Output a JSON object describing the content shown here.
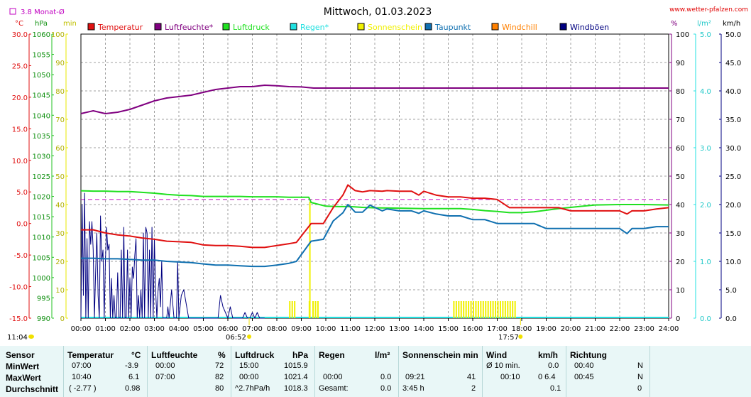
{
  "chart_data": {
    "type": "line",
    "title": "Mittwoch, 01.03.2023",
    "source": "www.wetter-pfalzen.com",
    "average_label": "3.8 Monat-Ø",
    "average_value": 3.8,
    "units": {
      "temp": "°C",
      "pressure": "hPa",
      "sun": "min",
      "humidity": "%",
      "rain": "l/m²",
      "wind": "km/h"
    },
    "axes": {
      "temp": {
        "min": -15,
        "max": 30,
        "ticks": [
          "30.0",
          "25.0",
          "20.0",
          "15.0",
          "10.0",
          "5.0",
          "0.0",
          "-5.0",
          "-10.0",
          "-15.0"
        ]
      },
      "pressure": {
        "min": 990,
        "max": 1060,
        "ticks": [
          "1060",
          "1055",
          "1050",
          "1045",
          "1040",
          "1035",
          "1030",
          "1025",
          "1020",
          "1015",
          "1010",
          "1005",
          "1000",
          "995",
          "990"
        ]
      },
      "sun": {
        "min": 0,
        "max": 100,
        "ticks": [
          "100",
          "90",
          "80",
          "70",
          "60",
          "50",
          "40",
          "30",
          "20",
          "10",
          "0"
        ]
      },
      "humidity": {
        "min": 0,
        "max": 100,
        "ticks": [
          "100",
          "90",
          "80",
          "70",
          "60",
          "50",
          "40",
          "30",
          "20",
          "10",
          "0"
        ]
      },
      "rain": {
        "min": 0,
        "max": 5,
        "ticks": [
          "5.0",
          "4.0",
          "3.0",
          "2.0",
          "1.0",
          "0.0"
        ]
      },
      "wind": {
        "min": 0,
        "max": 50,
        "ticks": [
          "50.0",
          "45.0",
          "40.0",
          "35.0",
          "30.0",
          "25.0",
          "20.0",
          "15.0",
          "10.0",
          "5.0",
          "0.0"
        ]
      }
    },
    "x_ticks": [
      "00:00",
      "01:00",
      "02:00",
      "03:00",
      "04:00",
      "05:00",
      "06:00",
      "07:00",
      "08:00",
      "09:00",
      "10:00",
      "11:00",
      "12:00",
      "13:00",
      "14:00",
      "15:00",
      "16:00",
      "17:00",
      "18:00",
      "19:00",
      "20:00",
      "21:00",
      "22:00",
      "23:00",
      "24:00"
    ],
    "sun_events": {
      "sunrise": "06:52",
      "sunset": "17:57",
      "sunrise_h": 6.87,
      "sunset_h": 17.95
    },
    "daylength": "11:04",
    "legend": [
      "Temperatur",
      "Luftfeuchte*",
      "Luftdruck",
      "Regen*",
      "Sonnenschein",
      "Taupunkt",
      "Windchill",
      "Windböen"
    ],
    "colors": {
      "Temperatur": "#e01010",
      "Luftfeuchte*": "#800080",
      "Luftdruck": "#20e020",
      "Regen*": "#20e0e0",
      "Sonnenschein": "#f0f000",
      "Taupunkt": "#1070b0",
      "Windchill": "#ff8000",
      "Windböen": "#000080"
    },
    "series": [
      {
        "name": "Temperatur",
        "axis": "temp",
        "x": [
          0,
          0.5,
          1,
          1.5,
          2,
          2.5,
          3,
          3.5,
          4,
          4.5,
          5,
          5.5,
          6,
          6.5,
          7,
          7.5,
          8,
          8.5,
          8.8,
          9.4,
          9.9,
          10.3,
          10.7,
          10.9,
          11.2,
          11.5,
          11.8,
          12.3,
          12.5,
          13,
          13.5,
          13.8,
          14,
          14.5,
          15,
          15.5,
          16,
          16.5,
          17,
          17.5,
          18,
          18.5,
          19,
          19.5,
          20,
          20.5,
          21,
          21.5,
          22,
          22.3,
          22.5,
          23,
          23.5,
          24
        ],
        "values": [
          -1,
          -1,
          -1.5,
          -1.8,
          -2,
          -2.3,
          -2.5,
          -2.8,
          -2.9,
          -3,
          -3.4,
          -3.5,
          -3.5,
          -3.6,
          -3.8,
          -3.8,
          -3.5,
          -3.2,
          -3,
          0,
          0,
          2.5,
          4.5,
          6.1,
          5.2,
          5,
          5.2,
          5.1,
          5.2,
          5.1,
          5.1,
          4.5,
          5.1,
          4.5,
          4.2,
          4.2,
          4,
          4,
          3.8,
          2.5,
          2.5,
          2.5,
          2.5,
          2.5,
          2,
          2,
          2,
          2,
          2,
          1.5,
          2,
          2,
          2.3,
          2.5
        ]
      },
      {
        "name": "Luftfeuchte*",
        "axis": "humidity",
        "x": [
          0,
          0.5,
          1,
          1.5,
          2,
          2.5,
          3,
          3.5,
          4,
          4.5,
          5,
          5.5,
          6,
          6.5,
          7,
          7.5,
          8,
          8.5,
          9,
          9.5,
          10,
          10.5,
          11,
          11.5,
          12,
          13,
          14,
          15,
          16,
          17,
          18,
          19,
          20,
          21,
          22,
          23,
          24
        ],
        "values": [
          72,
          73,
          72,
          72.5,
          73.5,
          75,
          76.5,
          77.5,
          78,
          78.5,
          79.5,
          80.5,
          81,
          81.5,
          81.5,
          82,
          81.8,
          81.5,
          81.4,
          81,
          81,
          81,
          81,
          81,
          81,
          81,
          81,
          81,
          81,
          81,
          81,
          81,
          81,
          81,
          81,
          81,
          81
        ]
      },
      {
        "name": "Luftdruck",
        "axis": "pressure",
        "x": [
          0,
          0.5,
          1,
          1.5,
          2,
          2.5,
          3,
          3.5,
          4,
          4.5,
          5,
          5.5,
          6,
          6.5,
          7,
          7.5,
          8,
          8.5,
          9,
          9.3,
          9.4,
          10,
          10.5,
          11,
          11.5,
          12,
          13,
          14,
          15,
          15.5,
          16,
          16.5,
          17,
          17.5,
          18,
          18.5,
          19,
          19.5,
          20,
          20.5,
          21,
          22,
          23,
          24
        ],
        "values": [
          1021.4,
          1021.3,
          1021.3,
          1021.2,
          1021.2,
          1021,
          1020.8,
          1020.5,
          1020.3,
          1020.2,
          1020,
          1020,
          1020,
          1020,
          1019.9,
          1019.9,
          1019.9,
          1019.8,
          1019.8,
          1019.8,
          1018.5,
          1017.6,
          1017.5,
          1017.5,
          1017.3,
          1017.2,
          1017.1,
          1017,
          1017,
          1017,
          1016.8,
          1016.5,
          1016.3,
          1016,
          1016,
          1016.2,
          1016.6,
          1017,
          1017.3,
          1017.6,
          1017.9,
          1018,
          1018,
          1017.9
        ]
      },
      {
        "name": "Taupunkt",
        "axis": "temp",
        "x": [
          0,
          0.5,
          1,
          1.5,
          2,
          2.5,
          3,
          3.5,
          4,
          4.5,
          5,
          5.5,
          6,
          6.5,
          7,
          7.5,
          8,
          8.5,
          8.8,
          9.4,
          9.9,
          10.3,
          10.7,
          10.9,
          11.2,
          11.5,
          11.8,
          12.3,
          12.5,
          13,
          13.5,
          13.8,
          14,
          14.5,
          15,
          15.5,
          16,
          16.5,
          17,
          17.5,
          18,
          18.5,
          19,
          19.5,
          20,
          20.5,
          21,
          21.5,
          22,
          22.3,
          22.5,
          23,
          23.5,
          24
        ],
        "values": [
          -5.5,
          -5.5,
          -5.6,
          -5.6,
          -5.7,
          -5.8,
          -5.8,
          -6,
          -6.1,
          -6.2,
          -6.4,
          -6.6,
          -6.6,
          -6.7,
          -6.8,
          -6.8,
          -6.6,
          -6.3,
          -6,
          -2.8,
          -2.5,
          0.4,
          1.7,
          3,
          1.8,
          1.8,
          2.9,
          2,
          2.3,
          2,
          2,
          1.6,
          2,
          1.5,
          1.2,
          1.2,
          0.6,
          0.6,
          0,
          0,
          0,
          0,
          -0.8,
          -0.8,
          -0.8,
          -0.8,
          -0.8,
          -0.8,
          -0.8,
          -1.6,
          -0.8,
          -0.8,
          -0.5,
          -0.5
        ]
      },
      {
        "name": "Windböen",
        "axis": "wind",
        "x": [
          0,
          0.05,
          0.1,
          0.15,
          0.2,
          0.25,
          0.3,
          0.35,
          0.4,
          0.45,
          0.5,
          0.55,
          0.6,
          0.65,
          0.7,
          0.75,
          0.8,
          0.85,
          0.9,
          0.95,
          1.0,
          1.05,
          1.1,
          1.15,
          1.2,
          1.25,
          1.3,
          1.35,
          1.4,
          1.45,
          1.5,
          1.55,
          1.6,
          1.65,
          1.7,
          1.75,
          1.8,
          1.85,
          1.9,
          1.95,
          2.0,
          2.05,
          2.1,
          2.15,
          2.2,
          2.25,
          2.3,
          2.35,
          2.4,
          2.45,
          2.5,
          2.55,
          2.6,
          2.65,
          2.7,
          2.75,
          2.8,
          2.85,
          2.9,
          2.95,
          3.0,
          3.05,
          3.1,
          3.15,
          3.2,
          3.25,
          3.3,
          3.35,
          3.4,
          3.5,
          3.55,
          3.6,
          3.7,
          3.8,
          3.9,
          3.95,
          4.0,
          4.1,
          4.2,
          4.4,
          5.5,
          5.6,
          5.7,
          5.8,
          5.9,
          6.0,
          6.1,
          6.2,
          6.3,
          6.4,
          6.6,
          6.7,
          6.8,
          6.9,
          7.0,
          7.1,
          7.2,
          7.3,
          7.5
        ],
        "values": [
          0,
          20,
          4,
          22,
          0,
          14,
          0,
          17,
          13,
          17,
          12,
          0,
          8,
          15,
          4,
          0,
          18,
          10,
          12,
          0,
          10,
          16,
          12,
          13,
          0,
          7,
          0,
          4,
          0,
          0,
          8,
          0,
          0,
          12,
          0,
          16,
          0,
          0,
          12,
          0,
          7,
          0,
          9,
          7,
          11,
          14,
          0,
          4,
          0,
          5,
          0,
          15,
          0,
          16,
          15,
          0,
          12,
          0,
          16,
          0,
          14,
          5,
          0,
          5,
          7,
          2,
          10,
          0,
          0,
          0,
          2,
          0,
          5,
          0,
          0,
          10,
          0,
          4,
          5,
          0,
          0,
          0,
          4,
          2,
          1,
          0,
          2,
          0,
          0,
          0,
          0,
          1,
          0,
          0,
          1,
          0,
          1,
          0,
          0
        ]
      },
      {
        "name": "Sonnenschein",
        "axis": "sun",
        "bars": [
          [
            8.5,
            6
          ],
          [
            8.6,
            6
          ],
          [
            8.7,
            6
          ],
          [
            9.3,
            6
          ],
          [
            9.45,
            6
          ],
          [
            9.55,
            6
          ],
          [
            9.65,
            6
          ],
          [
            15.2,
            6
          ],
          [
            15.3,
            6
          ],
          [
            15.4,
            6
          ],
          [
            15.5,
            6
          ],
          [
            15.6,
            6
          ],
          [
            15.7,
            6
          ],
          [
            15.8,
            6
          ],
          [
            15.9,
            6
          ],
          [
            16.0,
            6
          ],
          [
            16.1,
            6
          ],
          [
            16.2,
            6
          ],
          [
            16.3,
            6
          ],
          [
            16.4,
            6
          ],
          [
            16.5,
            6
          ],
          [
            16.6,
            6
          ],
          [
            16.7,
            6
          ],
          [
            16.8,
            6
          ],
          [
            16.9,
            6
          ],
          [
            17.0,
            6
          ],
          [
            17.1,
            6
          ],
          [
            17.2,
            6
          ],
          [
            17.3,
            6
          ],
          [
            17.4,
            6
          ],
          [
            17.5,
            6
          ],
          [
            17.6,
            6
          ],
          [
            17.7,
            6
          ]
        ],
        "spike": {
          "x": 9.35,
          "value": 41
        }
      }
    ]
  },
  "stats": {
    "headers": {
      "sensor": "Sensor",
      "temp": "Temperatur",
      "temp_unit": "°C",
      "hum": "Luftfeuchte",
      "hum_unit": "%",
      "press": "Luftdruck",
      "press_unit": "hPa",
      "rain": "Regen",
      "rain_unit": "l/m²",
      "sun": "Sonnenschein min",
      "wind": "Wind",
      "wind_unit": "km/h",
      "dir": "Richtung"
    },
    "rows": [
      {
        "label": "MinWert",
        "temp_time": "07:00",
        "temp_val": "-3.9",
        "hum_time": "00:00",
        "hum_val": "72",
        "press_time": "15:00",
        "press_val": "1015.9",
        "rain_time": "",
        "rain_val": "",
        "sun_time": "",
        "sun_val": "",
        "wind_time": "Ø 10 min.",
        "wind_val": "0.0",
        "dir_time": "00:40",
        "dir_val": "N"
      },
      {
        "label": "MaxWert",
        "temp_time": "10:40",
        "temp_val": "6.1",
        "hum_time": "07:00",
        "hum_val": "82",
        "press_time": "00:00",
        "press_val": "1021.4",
        "rain_time": "00:00",
        "rain_val": "0.0",
        "sun_time": "09:21",
        "sun_val": "41",
        "wind_time": "00:10",
        "wind_val": "0 6.4",
        "dir_time": "00:45",
        "dir_val": "N"
      },
      {
        "label": "Durchschnitt",
        "temp_time": "( -2.77 )",
        "temp_val": "0.98",
        "hum_time": "",
        "hum_val": "80",
        "press_time": "^2.7hPa/h",
        "press_val": "1018.3",
        "rain_time": "Gesamt:",
        "rain_val": "0.0",
        "sun_time": "3:45 h",
        "sun_val": "2",
        "wind_time": "",
        "wind_val": "0.1",
        "dir_time": "",
        "dir_val": "0"
      }
    ]
  }
}
